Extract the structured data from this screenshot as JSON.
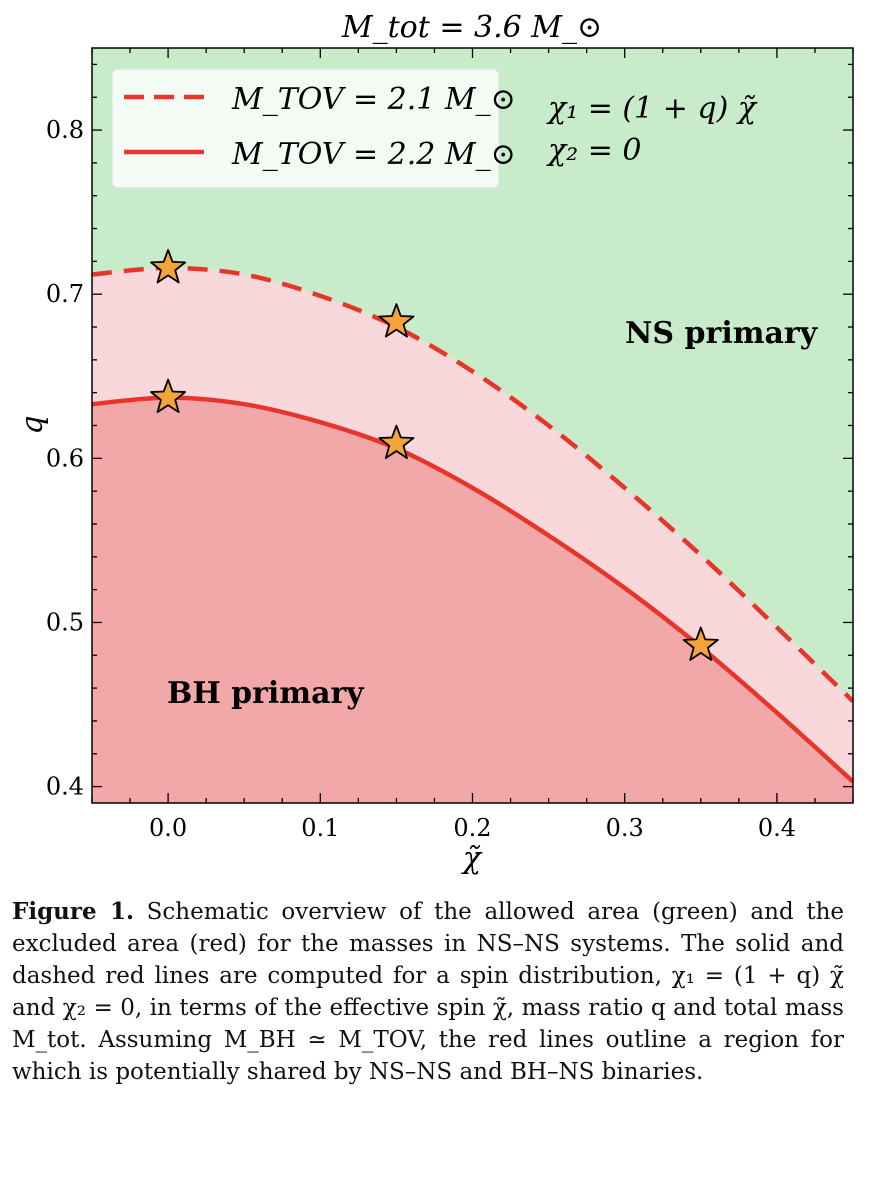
{
  "chart_data": {
    "type": "line",
    "title": "M_tot = 3.6 M_⊙",
    "xlabel": "χ̃",
    "ylabel": "q",
    "xlim": [
      -0.05,
      0.45
    ],
    "ylim": [
      0.39,
      0.85
    ],
    "x_ticks": [
      0.0,
      0.1,
      0.2,
      0.3,
      0.4
    ],
    "x_tick_labels": [
      "0.0",
      "0.1",
      "0.2",
      "0.3",
      "0.4"
    ],
    "y_ticks": [
      0.4,
      0.5,
      0.6,
      0.7,
      0.8
    ],
    "y_tick_labels": [
      "0.4",
      "0.5",
      "0.6",
      "0.7",
      "0.8"
    ],
    "grid": false,
    "legend_position": "top-left",
    "series": [
      {
        "name": "M_TOV = 2.1 M_⊙",
        "style": "dashed",
        "color": "#e8352b",
        "x": [
          -0.05,
          0.0,
          0.05,
          0.1,
          0.15,
          0.2,
          0.25,
          0.3,
          0.35,
          0.4,
          0.45
        ],
        "y": [
          0.712,
          0.716,
          0.712,
          0.699,
          0.68,
          0.653,
          0.62,
          0.582,
          0.541,
          0.497,
          0.452
        ]
      },
      {
        "name": "M_TOV = 2.2 M_⊙",
        "style": "solid",
        "color": "#e8352b",
        "x": [
          -0.05,
          0.0,
          0.05,
          0.1,
          0.15,
          0.2,
          0.25,
          0.3,
          0.35,
          0.4,
          0.45
        ],
        "y": [
          0.633,
          0.637,
          0.633,
          0.622,
          0.606,
          0.582,
          0.553,
          0.521,
          0.485,
          0.445,
          0.403
        ]
      }
    ],
    "markers": [
      {
        "x": 0.0,
        "y": 0.716
      },
      {
        "x": 0.15,
        "y": 0.683
      },
      {
        "x": 0.0,
        "y": 0.637
      },
      {
        "x": 0.15,
        "y": 0.609
      },
      {
        "x": 0.35,
        "y": 0.486
      }
    ],
    "annotations": {
      "chi1": "χ₁ = (1 + q) χ̃",
      "chi2": "χ₂ = 0",
      "ns_region": "NS primary",
      "bh_region": "BH primary"
    },
    "colors": {
      "allowed_region": "#c8ebc9",
      "shared_region": "#f8d8da",
      "excluded_region": "#f2a8a8",
      "line": "#e8352b",
      "marker_fill": "#f4a43a"
    }
  },
  "caption": {
    "label": "Figure 1.",
    "text": "Schematic overview of the allowed area (green) and the excluded area (red) for the masses in NS–NS systems. The solid and dashed red lines are computed for a spin distribution, χ₁ = (1 + q) χ̃ and χ₂ = 0, in terms of the effective spin χ̃, mass ratio q and total mass M_tot. Assuming M_BH ≃ M_TOV, the red lines outline a region for which is potentially shared by NS–NS and BH–NS binaries."
  }
}
